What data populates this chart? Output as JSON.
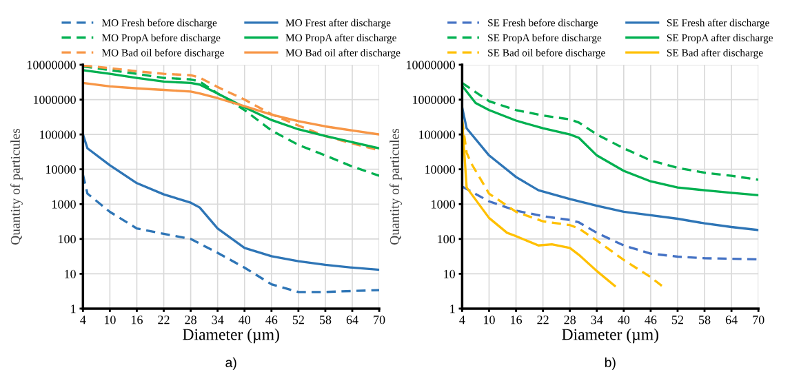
{
  "chart_data": [
    {
      "type": "line",
      "xlabel": "Diameter (µm)",
      "ylabel": "Quantity of particules",
      "log": "y",
      "grid": true,
      "legend": "top",
      "annotations": [
        "a)"
      ],
      "xlim": [
        4,
        70
      ],
      "xticks": [
        4,
        10,
        16,
        22,
        28,
        34,
        40,
        46,
        52,
        58,
        64,
        70
      ],
      "ylim": [
        1,
        10000000
      ],
      "yticks": [
        1,
        10,
        100,
        1000,
        10000,
        100000,
        1000000,
        10000000
      ],
      "series": [
        {
          "name": "MO Fresh before discharge",
          "color": "#2e75b6",
          "line_style": "dashed",
          "x": [
            4,
            5,
            10,
            16,
            22,
            28,
            34,
            40,
            46,
            52,
            58,
            64,
            70
          ],
          "values": [
            7000,
            2000,
            600,
            200,
            140,
            100,
            40,
            15,
            5,
            3,
            3,
            3.2,
            3.4
          ]
        },
        {
          "name": "MO PropA before discharge",
          "color": "#00b050",
          "line_style": "dashed",
          "x": [
            4,
            10,
            16,
            22,
            28,
            30,
            34,
            40,
            46,
            52,
            58,
            64,
            70
          ],
          "values": [
            9000000,
            7000000,
            5500000,
            4200000,
            3800000,
            3300000,
            1500000,
            500000,
            130000,
            50000,
            25000,
            12000,
            6500
          ]
        },
        {
          "name": "MO Bad oil before discharge",
          "color": "#f79646",
          "line_style": "dashed",
          "x": [
            4,
            10,
            16,
            22,
            28,
            30,
            34,
            40,
            46,
            52,
            58,
            64,
            70
          ],
          "values": [
            9500000,
            8000000,
            6500000,
            5500000,
            5000000,
            4300000,
            2300000,
            1000000,
            380000,
            180000,
            90000,
            55000,
            35000
          ]
        },
        {
          "name": "MO Frest after discharge",
          "color": "#2e75b6",
          "line_style": "solid",
          "x": [
            4,
            5,
            10,
            16,
            22,
            28,
            30,
            34,
            40,
            46,
            52,
            58,
            64,
            70
          ],
          "values": [
            100000,
            40000,
            13000,
            4000,
            1900,
            1100,
            800,
            200,
            55,
            32,
            23,
            18,
            15,
            13
          ]
        },
        {
          "name": "MO PropA after discharge",
          "color": "#00b050",
          "line_style": "solid",
          "x": [
            4,
            10,
            16,
            22,
            28,
            30,
            34,
            40,
            46,
            52,
            58,
            64,
            70
          ],
          "values": [
            7000000,
            5500000,
            4200000,
            3300000,
            3000000,
            2700000,
            1500000,
            600000,
            260000,
            140000,
            90000,
            60000,
            40000
          ]
        },
        {
          "name": "MO Bad oil after discharge",
          "color": "#f79646",
          "line_style": "solid",
          "x": [
            4,
            10,
            16,
            22,
            28,
            30,
            34,
            40,
            46,
            52,
            58,
            64,
            70
          ],
          "values": [
            3000000,
            2400000,
            2100000,
            1900000,
            1700000,
            1500000,
            1100000,
            650000,
            370000,
            240000,
            170000,
            130000,
            100000
          ]
        }
      ]
    },
    {
      "type": "line",
      "xlabel": "Diameter (µm)",
      "ylabel": "Quantity of particules",
      "log": "y",
      "grid": true,
      "legend": "top",
      "annotations": [
        "b)"
      ],
      "xlim": [
        4,
        70
      ],
      "xticks": [
        4,
        10,
        16,
        22,
        28,
        34,
        40,
        46,
        52,
        58,
        64,
        70
      ],
      "ylim": [
        1,
        10000000
      ],
      "yticks": [
        1,
        10,
        100,
        1000,
        10000,
        100000,
        1000000,
        10000000
      ],
      "series": [
        {
          "name": "SE Fresh before discharge",
          "color": "#4472c4",
          "line_style": "dashed",
          "x": [
            4,
            10,
            16,
            22,
            28,
            30,
            34,
            40,
            46,
            52,
            58,
            64,
            70
          ],
          "values": [
            3200,
            1200,
            650,
            450,
            350,
            300,
            150,
            65,
            38,
            31,
            28,
            27,
            26
          ]
        },
        {
          "name": "SE PropA before discharge",
          "color": "#00b050",
          "line_style": "dashed",
          "x": [
            4,
            10,
            16,
            22,
            28,
            30,
            34,
            40,
            46,
            52,
            58,
            64,
            70
          ],
          "values": [
            3000000,
            900000,
            500000,
            350000,
            270000,
            220000,
            100000,
            40000,
            18000,
            11000,
            8000,
            6500,
            5000
          ]
        },
        {
          "name": "SE Bad oil before discharge",
          "color": "#ffc000",
          "line_style": "dashed",
          "x": [
            4,
            5,
            6,
            10,
            16,
            22,
            28,
            30,
            34,
            40,
            46,
            49
          ],
          "values": [
            250000,
            30000,
            15000,
            2000,
            600,
            320,
            250,
            200,
            90,
            25,
            8,
            4
          ]
        },
        {
          "name": "SE Fresh after discharge",
          "color": "#2e75b6",
          "line_style": "solid",
          "x": [
            4,
            5,
            10,
            16,
            21,
            28,
            34,
            40,
            46,
            52,
            58,
            64,
            70
          ],
          "values": [
            600000,
            150000,
            25000,
            6000,
            2500,
            1400,
            900,
            600,
            480,
            380,
            280,
            220,
            180
          ]
        },
        {
          "name": "SE PropA after discharge",
          "color": "#00b050",
          "line_style": "solid",
          "x": [
            4,
            7,
            10,
            16,
            22,
            28,
            30,
            34,
            40,
            46,
            52,
            58,
            64,
            70
          ],
          "values": [
            2500000,
            800000,
            500000,
            250000,
            150000,
            100000,
            80000,
            25000,
            9000,
            4500,
            3000,
            2500,
            2100,
            1800
          ]
        },
        {
          "name": "SE Bad after discharge",
          "color": "#ffc000",
          "line_style": "solid",
          "x": [
            4,
            5,
            10,
            14,
            16,
            21,
            24,
            28,
            30,
            34,
            38
          ],
          "values": [
            250000,
            3000,
            400,
            150,
            120,
            65,
            70,
            55,
            35,
            12,
            4.5
          ]
        }
      ]
    }
  ]
}
